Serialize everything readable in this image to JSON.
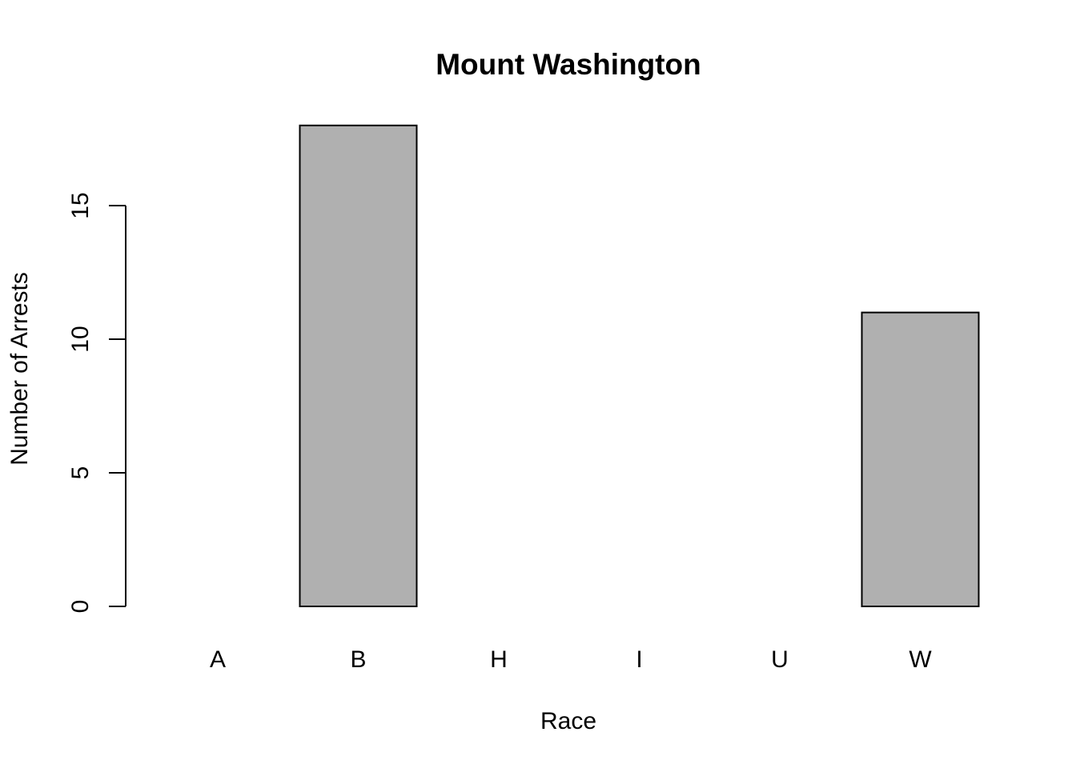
{
  "chart_data": {
    "type": "bar",
    "title": "Mount Washington",
    "xlabel": "Race",
    "ylabel": "Number of Arrests",
    "categories": [
      "A",
      "B",
      "H",
      "I",
      "U",
      "W"
    ],
    "values": [
      0,
      18,
      0,
      0,
      0,
      11
    ],
    "yticks": [
      0,
      5,
      10,
      15
    ],
    "ylim": [
      0,
      18
    ],
    "bar_color": "#b0b0b0",
    "grid": false
  }
}
